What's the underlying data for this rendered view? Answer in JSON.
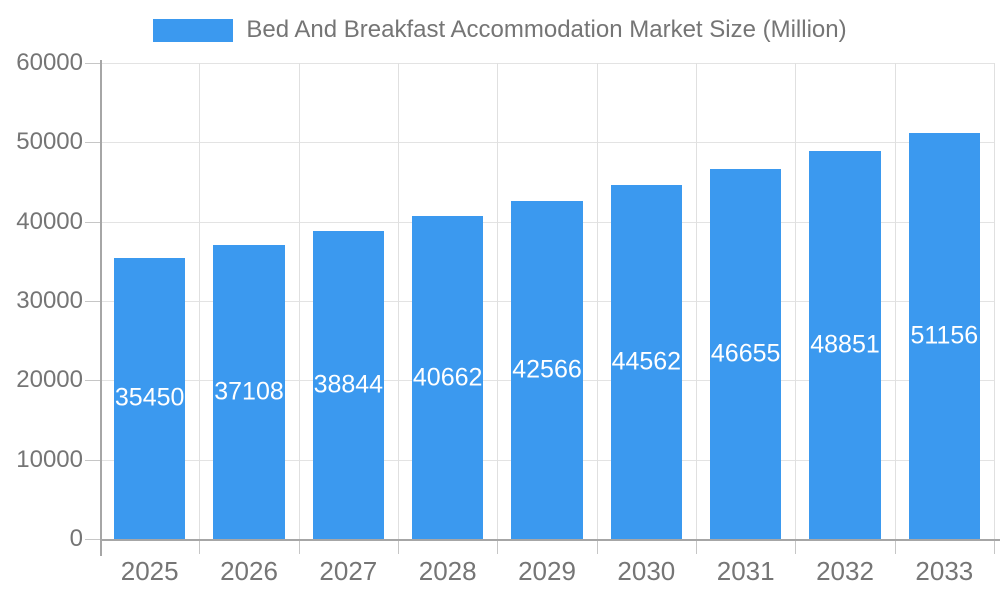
{
  "chart_data": {
    "type": "bar",
    "title": "Bed And Breakfast Accommodation Market Size (Million)",
    "categories": [
      "2025",
      "2026",
      "2027",
      "2028",
      "2029",
      "2030",
      "2031",
      "2032",
      "2033"
    ],
    "values": [
      35450,
      37108,
      38844,
      40662,
      42566,
      44562,
      46655,
      48851,
      51156
    ],
    "series": [
      {
        "name": "Bed And Breakfast Accommodation Market Size (Million)",
        "values": [
          35450,
          37108,
          38844,
          40662,
          42566,
          44562,
          46655,
          48851,
          51156
        ]
      }
    ],
    "xlabel": "",
    "ylabel": "",
    "ylim": [
      0,
      60000
    ],
    "y_ticks": [
      0,
      10000,
      20000,
      30000,
      40000,
      50000,
      60000
    ],
    "y_tick_labels": [
      "0",
      "10000",
      "20000",
      "30000",
      "40000",
      "50000",
      "60000"
    ],
    "grid": true,
    "legend_position": "top",
    "bar_color": "#3B99EF",
    "value_label_color": "#FFFFFF",
    "axis_text_color": "#757575",
    "value_labels_shown": true
  }
}
